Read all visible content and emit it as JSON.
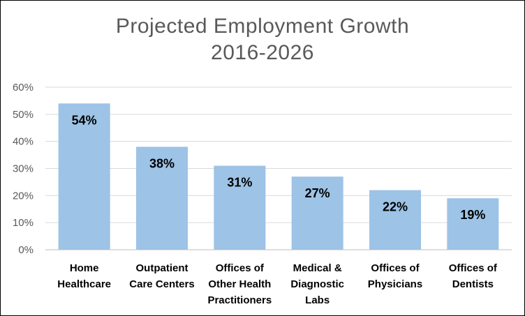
{
  "chart_data": {
    "type": "bar",
    "title_lines": [
      "Projected Employment Growth",
      "2016-2026"
    ],
    "categories": [
      [
        "Home",
        "Healthcare"
      ],
      [
        "Outpatient",
        "Care Centers"
      ],
      [
        "Offices of",
        "Other Health",
        "Practitioners"
      ],
      [
        "Medical &",
        "Diagnostic",
        "Labs"
      ],
      [
        "Offices of",
        "Physicians"
      ],
      [
        "Offices of",
        "Dentists"
      ]
    ],
    "values": [
      54,
      38,
      31,
      27,
      22,
      19
    ],
    "data_labels": [
      "54%",
      "38%",
      "31%",
      "27%",
      "22%",
      "19%"
    ],
    "ylim": [
      0,
      60
    ],
    "yticks": [
      0,
      10,
      20,
      30,
      40,
      50,
      60
    ],
    "ytick_labels": [
      "0%",
      "10%",
      "20%",
      "30%",
      "40%",
      "50%",
      "60%"
    ],
    "grid": true,
    "legend": "none",
    "colors": {
      "bar": "#9dc3e6",
      "grid": "#d9d9d9",
      "axis": "#bfbfbf"
    }
  }
}
